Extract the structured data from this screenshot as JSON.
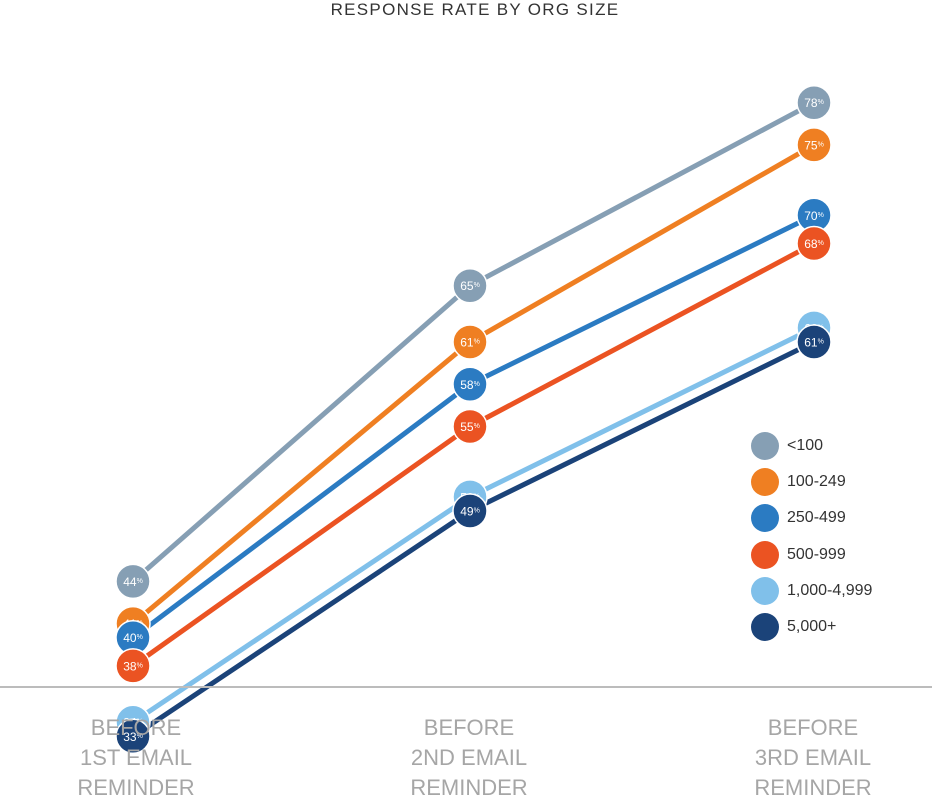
{
  "chart_data": {
    "type": "line",
    "title": "RESPONSE RATE BY ORG SIZE",
    "categories": [
      [
        "BEFORE",
        "1ST EMAIL",
        "REMINDER"
      ],
      [
        "BEFORE",
        "2ND EMAIL",
        "REMINDER"
      ],
      [
        "BEFORE",
        "3RD EMAIL",
        "REMINDER"
      ]
    ],
    "ylim": [
      0,
      100
    ],
    "grid": false,
    "legend_position": "right",
    "value_suffix": "%",
    "series": [
      {
        "name": "<100",
        "color": "#869fb4",
        "values": [
          44,
          65,
          78
        ]
      },
      {
        "name": "100-249",
        "color": "#ef7f22",
        "values": [
          41,
          61,
          75
        ]
      },
      {
        "name": "250-499",
        "color": "#2b7bc2",
        "values": [
          40,
          58,
          70
        ]
      },
      {
        "name": "500-999",
        "color": "#eb5322",
        "values": [
          38,
          55,
          68
        ]
      },
      {
        "name": "1,000-4,999",
        "color": "#80c0ea",
        "values": [
          34,
          50,
          62
        ]
      },
      {
        "name": "5,000+",
        "color": "#1b4379",
        "values": [
          33,
          49,
          61
        ]
      }
    ]
  }
}
